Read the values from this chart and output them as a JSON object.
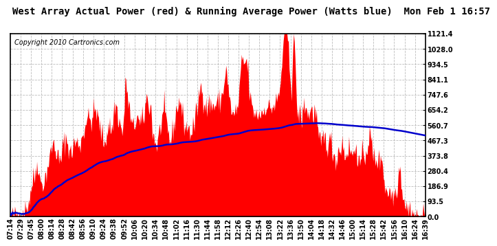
{
  "title": "West Array Actual Power (red) & Running Average Power (Watts blue)  Mon Feb 1 16:57",
  "copyright": "Copyright 2010 Cartronics.com",
  "background_color": "#ffffff",
  "plot_bg_color": "#ffffff",
  "grid_color": "#bbbbbb",
  "y_ticks": [
    0.0,
    93.5,
    186.9,
    280.4,
    373.8,
    467.3,
    560.7,
    654.2,
    747.6,
    841.1,
    934.5,
    1028.0,
    1121.4
  ],
  "x_labels": [
    "07:14",
    "07:29",
    "07:45",
    "08:00",
    "08:14",
    "08:28",
    "08:42",
    "08:56",
    "09:10",
    "09:24",
    "09:38",
    "09:52",
    "10:06",
    "10:20",
    "10:34",
    "10:48",
    "11:02",
    "11:16",
    "11:30",
    "11:44",
    "11:58",
    "12:12",
    "12:26",
    "12:40",
    "12:54",
    "13:08",
    "13:22",
    "13:36",
    "13:50",
    "14:04",
    "14:18",
    "14:32",
    "14:46",
    "15:00",
    "15:14",
    "15:28",
    "15:42",
    "15:56",
    "16:10",
    "16:24",
    "16:39"
  ],
  "fill_color": "#ff0000",
  "line_color": "#0000cc",
  "title_fontsize": 10,
  "copyright_fontsize": 7,
  "tick_fontsize": 7,
  "y_max": 1121.4,
  "border_color": "#000000"
}
